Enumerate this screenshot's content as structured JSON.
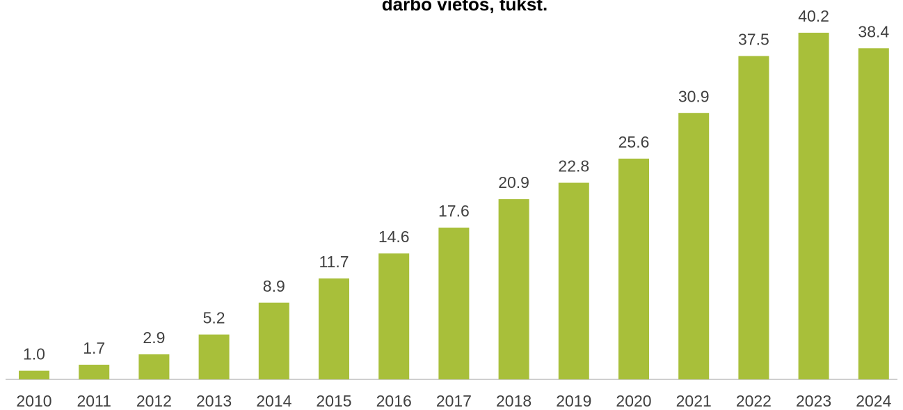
{
  "chart_data": {
    "type": "bar",
    "title": "darbo vietos, tūkst.",
    "categories": [
      "2010",
      "2011",
      "2012",
      "2013",
      "2014",
      "2015",
      "2016",
      "2017",
      "2018",
      "2019",
      "2020",
      "2021",
      "2022",
      "2023",
      "2024"
    ],
    "values": [
      1.0,
      1.7,
      2.9,
      5.2,
      8.9,
      11.7,
      14.6,
      17.6,
      20.9,
      22.8,
      25.6,
      30.9,
      37.5,
      40.2,
      38.4
    ],
    "value_labels": [
      "1.0",
      "1.7",
      "2.9",
      "5.2",
      "8.9",
      "11.7",
      "14.6",
      "17.6",
      "20.9",
      "22.8",
      "25.6",
      "30.9",
      "37.5",
      "40.2",
      "38.4"
    ],
    "color": "#a8bf3a"
  }
}
